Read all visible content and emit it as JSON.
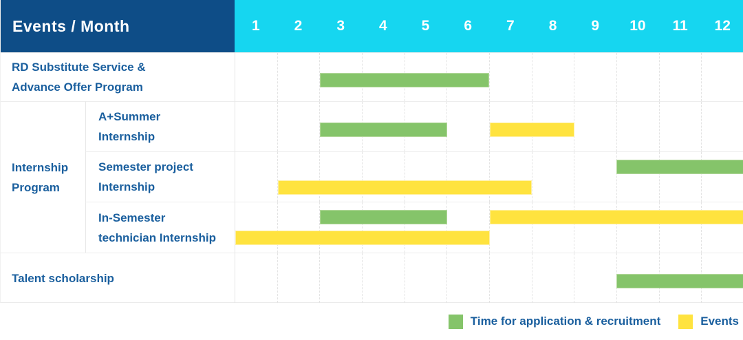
{
  "header": {
    "title": "Events / Month",
    "months": [
      "1",
      "2",
      "3",
      "4",
      "5",
      "6",
      "7",
      "8",
      "9",
      "10",
      "11",
      "12"
    ]
  },
  "colors": {
    "header_bg": "#0e4d87",
    "months_bg": "#16d6f0",
    "green": "#85c46a",
    "yellow": "#ffe33f",
    "label_text": "#1a5f9e"
  },
  "rows": [
    {
      "id": "rd-substitute",
      "label_lines": [
        "RD Substitute Service &",
        "Advance Offer Program"
      ],
      "label_span": "full",
      "bars": [
        {
          "color": "green",
          "start_month": 3,
          "end_month": 6,
          "lane": "single"
        }
      ]
    },
    {
      "id": "a-summer-internship",
      "label_lines": [
        "A+Summer",
        "Internship"
      ],
      "label_span": "sub",
      "group": {
        "label_lines": [
          "Internship",
          "Program"
        ],
        "span": 3
      },
      "bars": [
        {
          "color": "green",
          "start_month": 3,
          "end_month": 5,
          "lane": "single"
        },
        {
          "color": "yellow",
          "start_month": 7,
          "end_month": 8,
          "lane": "single"
        }
      ]
    },
    {
      "id": "semester-project-internship",
      "label_lines": [
        "Semester project",
        "Internship"
      ],
      "label_span": "sub",
      "bars": [
        {
          "color": "green",
          "start_month": 10,
          "end_month": 12,
          "lane": "top"
        },
        {
          "color": "yellow",
          "start_month": 2,
          "end_month": 7,
          "lane": "bottom"
        }
      ]
    },
    {
      "id": "in-semester-technician-internship",
      "label_lines": [
        "In-Semester",
        "technician Internship"
      ],
      "label_span": "sub",
      "bars": [
        {
          "color": "green",
          "start_month": 3,
          "end_month": 5,
          "lane": "top"
        },
        {
          "color": "yellow",
          "start_month": 7,
          "end_month": 12,
          "lane": "top"
        },
        {
          "color": "yellow",
          "start_month": 1,
          "end_month": 6,
          "lane": "bottom"
        }
      ]
    },
    {
      "id": "talent-scholarship",
      "label_lines": [
        "Talent scholarship"
      ],
      "label_span": "full",
      "bars": [
        {
          "color": "green",
          "start_month": 10,
          "end_month": 12,
          "lane": "single"
        }
      ]
    }
  ],
  "legend": {
    "items": [
      {
        "swatch": "green",
        "label": "Time for application & recruitment"
      },
      {
        "swatch": "yellow",
        "label": "Events"
      }
    ]
  },
  "chart_data": {
    "type": "bar",
    "subtype": "gantt-schedule",
    "title": "Events / Month",
    "x_axis": {
      "label": "Month",
      "ticks": [
        1,
        2,
        3,
        4,
        5,
        6,
        7,
        8,
        9,
        10,
        11,
        12
      ],
      "range": [
        1,
        12
      ]
    },
    "legend_entries": [
      "Time for application & recruitment",
      "Events"
    ],
    "legend_position": "bottom-right",
    "grid": true,
    "tasks": [
      {
        "row": "RD Substitute Service & Advance Offer Program",
        "group": null,
        "bars": [
          {
            "series": "Time for application & recruitment",
            "start_month": 3,
            "end_month": 6
          }
        ]
      },
      {
        "row": "A+Summer Internship",
        "group": "Internship Program",
        "bars": [
          {
            "series": "Time for application & recruitment",
            "start_month": 3,
            "end_month": 5
          },
          {
            "series": "Events",
            "start_month": 7,
            "end_month": 8
          }
        ]
      },
      {
        "row": "Semester project Internship",
        "group": "Internship Program",
        "bars": [
          {
            "series": "Time for application & recruitment",
            "start_month": 10,
            "end_month": 12
          },
          {
            "series": "Events",
            "start_month": 2,
            "end_month": 7
          }
        ]
      },
      {
        "row": "In-Semester technician Internship",
        "group": "Internship Program",
        "bars": [
          {
            "series": "Time for application & recruitment",
            "start_month": 3,
            "end_month": 5
          },
          {
            "series": "Events",
            "start_month": 7,
            "end_month": 12
          },
          {
            "series": "Events",
            "start_month": 1,
            "end_month": 6
          }
        ]
      },
      {
        "row": "Talent scholarship",
        "group": null,
        "bars": [
          {
            "series": "Time for application & recruitment",
            "start_month": 10,
            "end_month": 12
          }
        ]
      }
    ]
  }
}
